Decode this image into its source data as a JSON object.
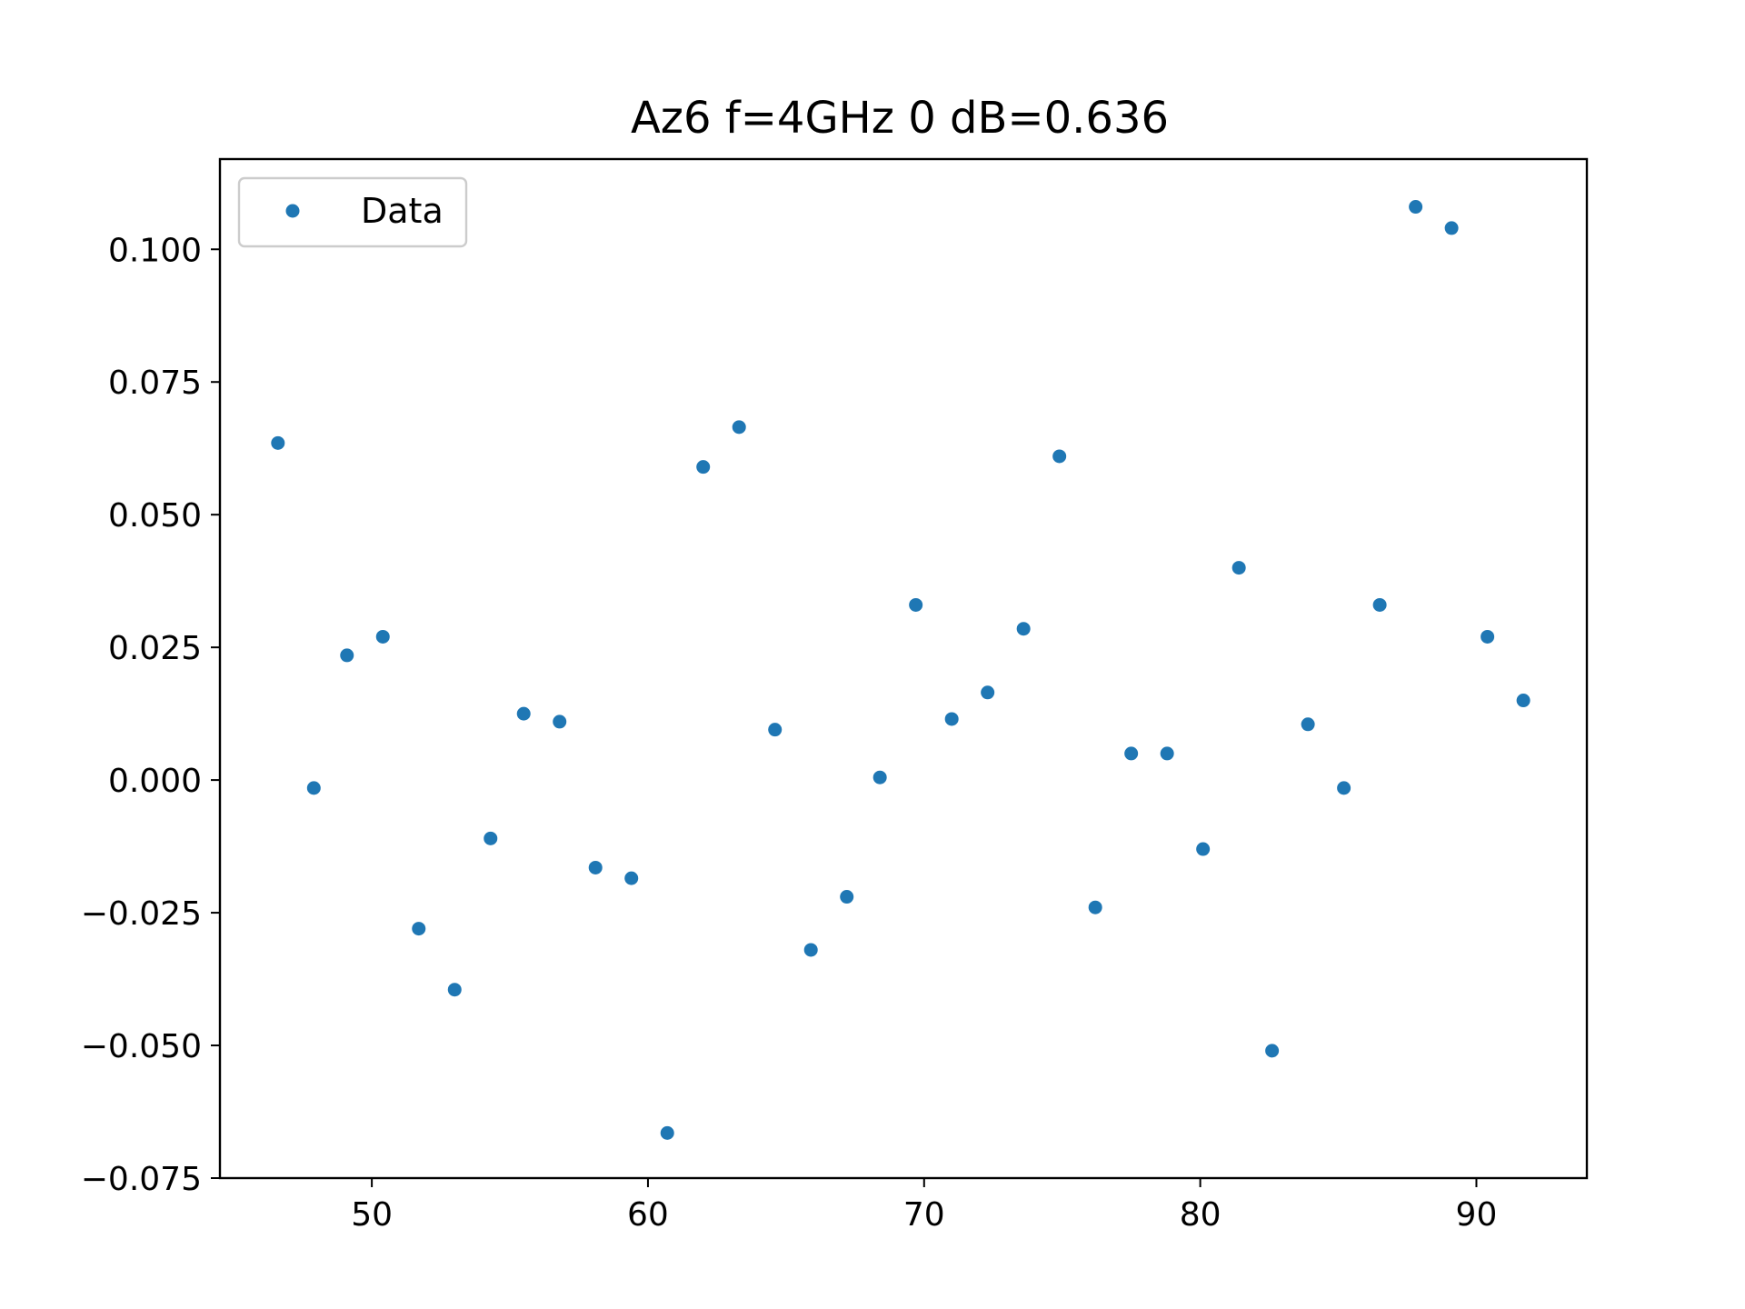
{
  "chart_data": {
    "type": "scatter",
    "title": "Az6 f=4GHz 0 dB=0.636",
    "xlabel": "",
    "ylabel": "",
    "xlim": [
      44.5,
      94.0
    ],
    "ylim": [
      -0.075,
      0.117
    ],
    "x_ticks": [
      50,
      60,
      70,
      80,
      90
    ],
    "x_tick_labels": [
      "50",
      "60",
      "70",
      "80",
      "90"
    ],
    "y_ticks": [
      -0.075,
      -0.05,
      -0.025,
      0.0,
      0.025,
      0.05,
      0.075,
      0.1
    ],
    "y_tick_labels": [
      "−0.075",
      "−0.050",
      "−0.025",
      "0.000",
      "0.025",
      "0.050",
      "0.075",
      "0.100"
    ],
    "grid": false,
    "legend_position": "upper-left",
    "series": [
      {
        "name": "Data",
        "color": "#1f77b4",
        "points": [
          {
            "x": 46.6,
            "y": 0.0635
          },
          {
            "x": 47.9,
            "y": -0.0015
          },
          {
            "x": 49.1,
            "y": 0.0235
          },
          {
            "x": 50.4,
            "y": 0.027
          },
          {
            "x": 51.7,
            "y": -0.028
          },
          {
            "x": 53.0,
            "y": -0.0395
          },
          {
            "x": 54.3,
            "y": -0.011
          },
          {
            "x": 55.5,
            "y": 0.0125
          },
          {
            "x": 56.8,
            "y": 0.011
          },
          {
            "x": 58.1,
            "y": -0.0165
          },
          {
            "x": 59.4,
            "y": -0.0185
          },
          {
            "x": 60.7,
            "y": -0.0665
          },
          {
            "x": 62.0,
            "y": 0.059
          },
          {
            "x": 63.3,
            "y": 0.0665
          },
          {
            "x": 64.6,
            "y": 0.0095
          },
          {
            "x": 65.9,
            "y": -0.032
          },
          {
            "x": 67.2,
            "y": -0.022
          },
          {
            "x": 68.4,
            "y": 0.0005
          },
          {
            "x": 69.7,
            "y": 0.033
          },
          {
            "x": 71.0,
            "y": 0.0115
          },
          {
            "x": 72.3,
            "y": 0.0165
          },
          {
            "x": 73.6,
            "y": 0.0285
          },
          {
            "x": 74.9,
            "y": 0.061
          },
          {
            "x": 76.2,
            "y": -0.024
          },
          {
            "x": 77.5,
            "y": 0.005
          },
          {
            "x": 78.8,
            "y": 0.005
          },
          {
            "x": 80.1,
            "y": -0.013
          },
          {
            "x": 81.4,
            "y": 0.04
          },
          {
            "x": 82.6,
            "y": -0.051
          },
          {
            "x": 83.9,
            "y": 0.0105
          },
          {
            "x": 85.2,
            "y": -0.0015
          },
          {
            "x": 86.5,
            "y": 0.033
          },
          {
            "x": 87.8,
            "y": 0.108
          },
          {
            "x": 89.1,
            "y": 0.104
          },
          {
            "x": 90.4,
            "y": 0.027
          },
          {
            "x": 91.7,
            "y": 0.015
          }
        ]
      }
    ]
  }
}
